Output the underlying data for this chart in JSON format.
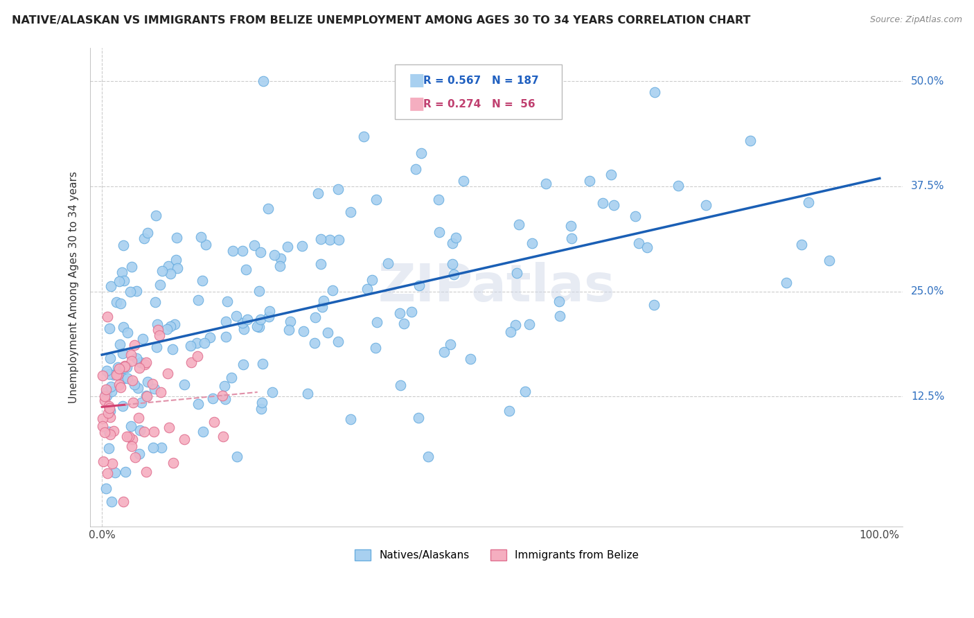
{
  "title": "NATIVE/ALASKAN VS IMMIGRANTS FROM BELIZE UNEMPLOYMENT AMONG AGES 30 TO 34 YEARS CORRELATION CHART",
  "source": "Source: ZipAtlas.com",
  "ylabel": "Unemployment Among Ages 30 to 34 years",
  "blue_color": "#a8d0f0",
  "blue_edge_color": "#6aaee0",
  "pink_color": "#f5aec0",
  "pink_edge_color": "#e07090",
  "blue_line_color": "#1a5fb5",
  "pink_line_color": "#d04070",
  "pink_dash_color": "#e090a8",
  "watermark": "ZIPatlas",
  "R_blue": 0.567,
  "N_blue": 187,
  "R_pink": 0.274,
  "N_pink": 56,
  "ytick_values": [
    12.5,
    25.0,
    37.5,
    50.0
  ],
  "blue_scatter_seed": 123,
  "pink_scatter_seed": 456
}
